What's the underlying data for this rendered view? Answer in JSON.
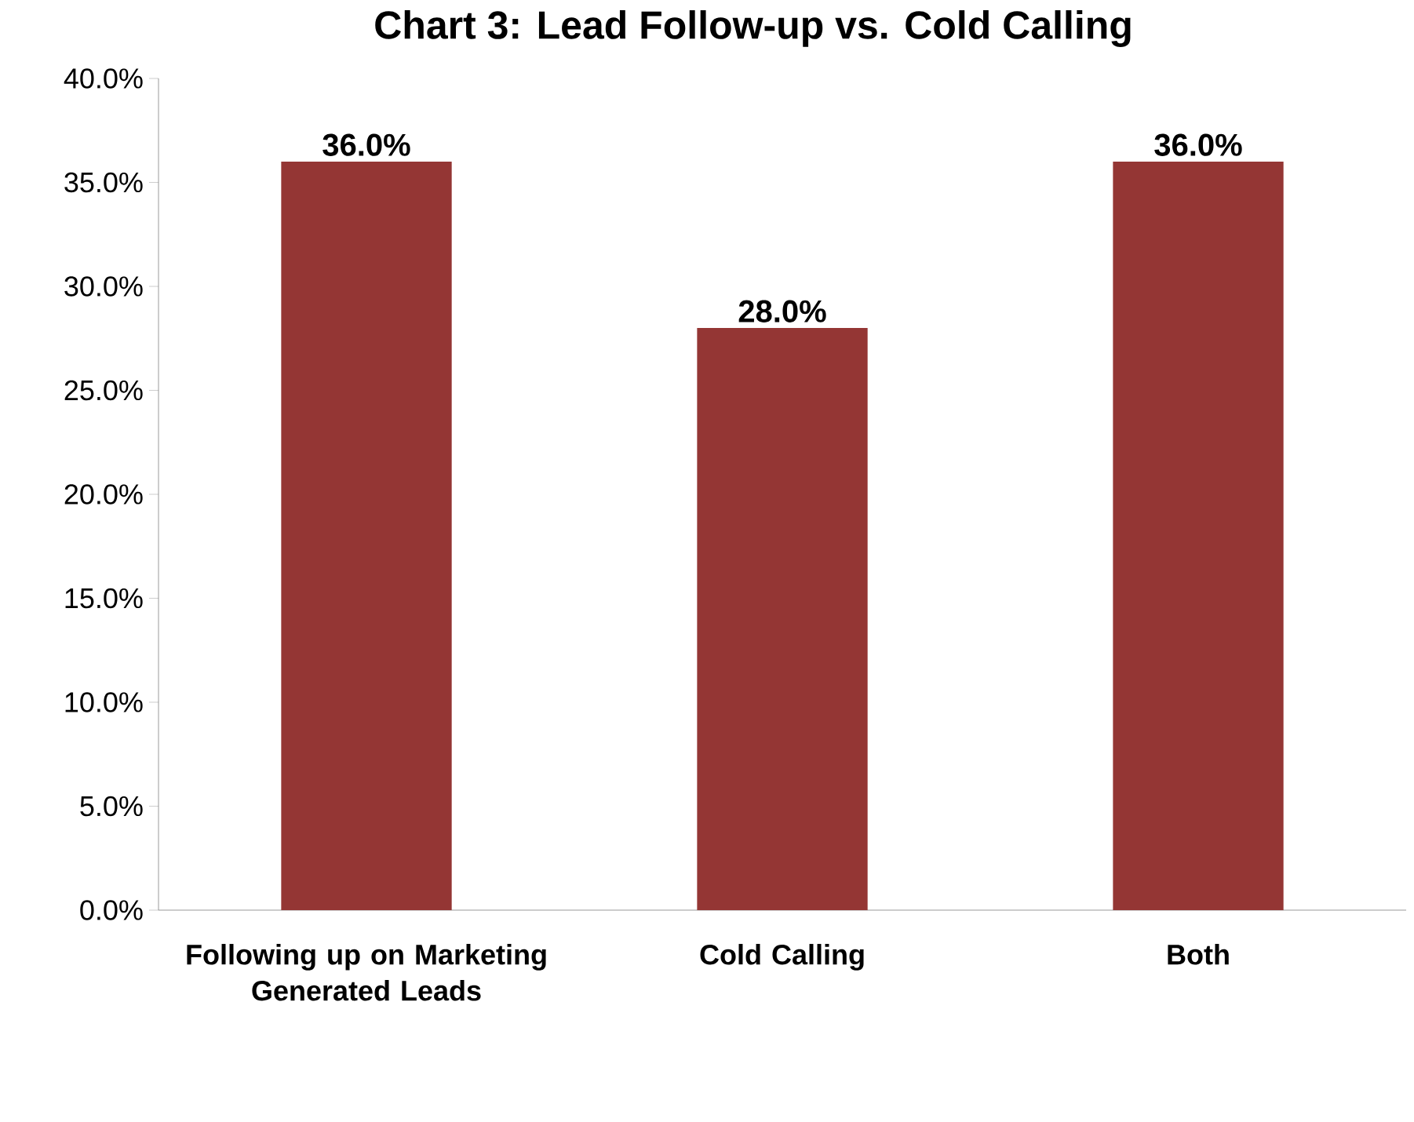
{
  "chart_data": {
    "type": "bar",
    "title": "Chart 3: Lead Follow-up vs. Cold Calling",
    "categories": [
      "Following up on Marketing Generated Leads",
      "Cold Calling",
      "Both"
    ],
    "values": [
      36,
      28,
      36
    ],
    "value_labels": [
      "36.0%",
      "28.0%",
      "36.0%"
    ],
    "color": "#943634",
    "ylim": [
      0,
      40
    ],
    "yticks": [
      {
        "value": 0,
        "label": "0.0%"
      },
      {
        "value": 5,
        "label": "5.0%"
      },
      {
        "value": 10,
        "label": "10.0%"
      },
      {
        "value": 15,
        "label": "15.0%"
      },
      {
        "value": 20,
        "label": "20.0%"
      },
      {
        "value": 25,
        "label": "25.0%"
      },
      {
        "value": 30,
        "label": "30.0%"
      },
      {
        "value": 35,
        "label": "35.0%"
      },
      {
        "value": 40,
        "label": "40.0%"
      }
    ],
    "grid": false
  }
}
